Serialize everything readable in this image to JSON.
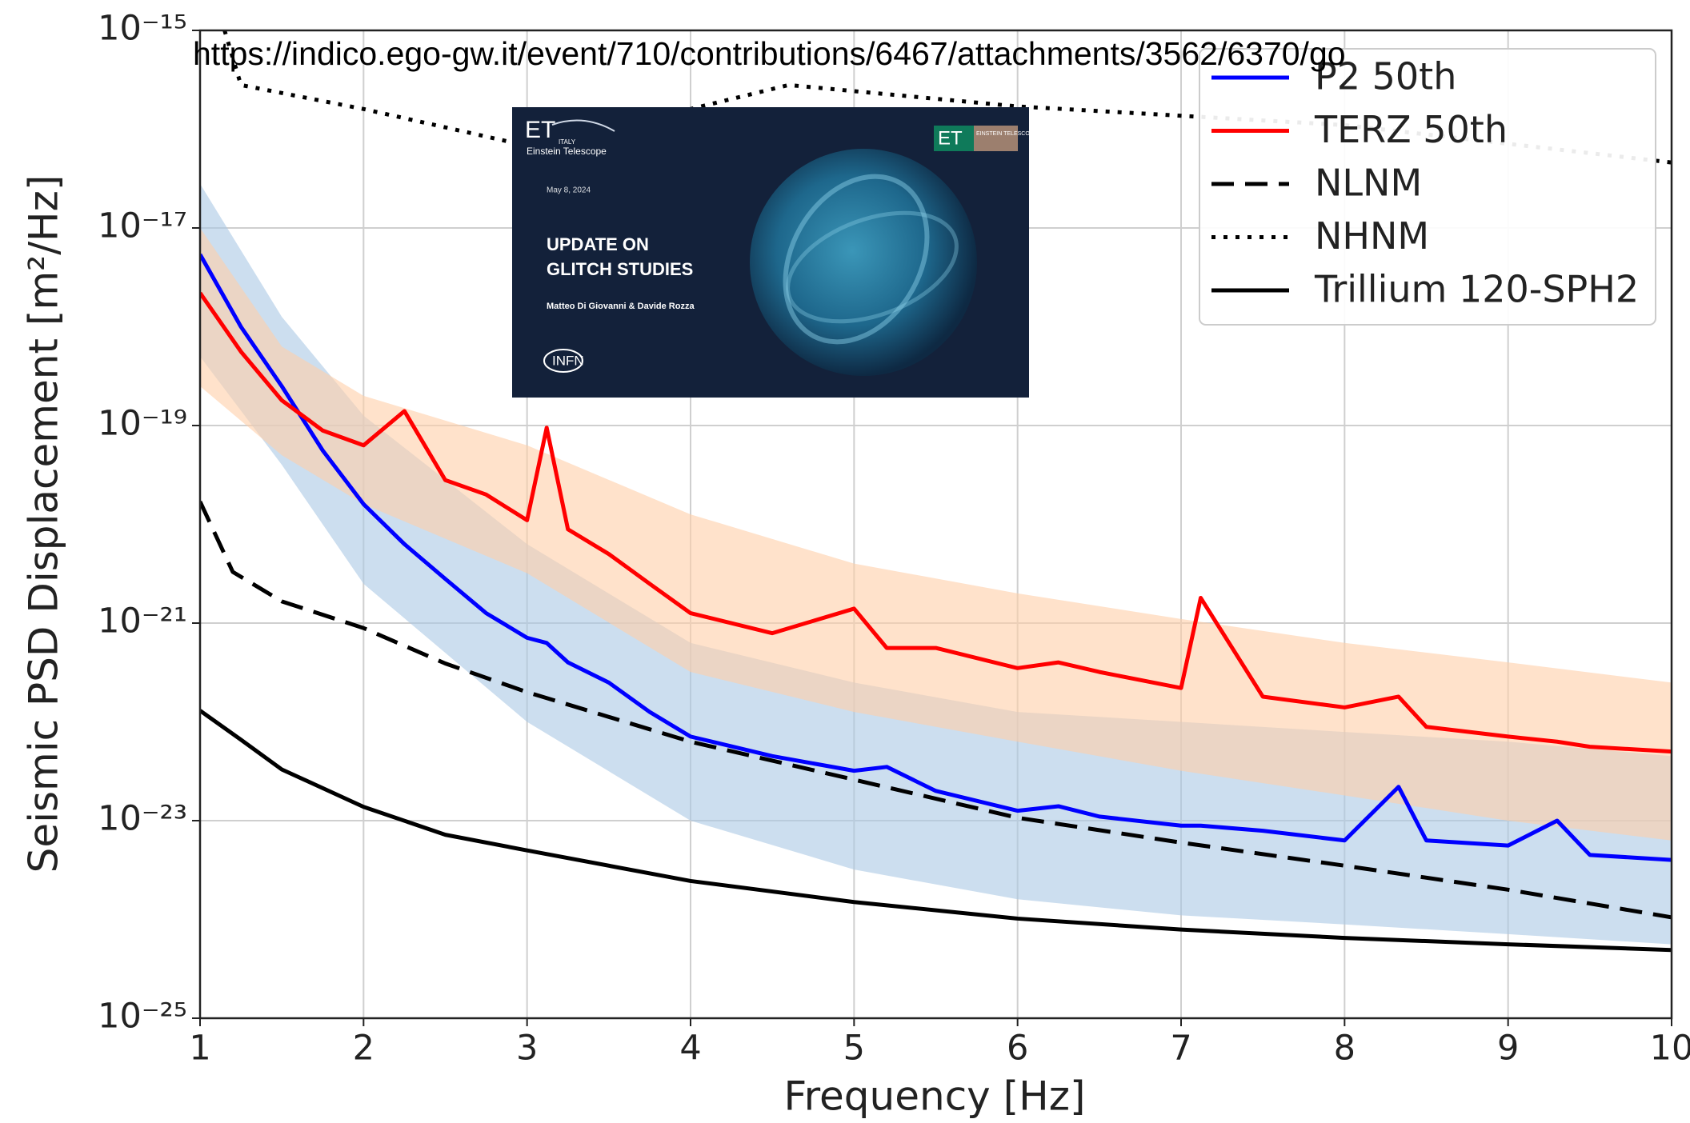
{
  "chart_data": {
    "type": "line",
    "annotation": "https://indico.ego-gw.it/event/710/contributions/6467/attachments/3562/6370/go",
    "xlabel": "Frequency [Hz]",
    "ylabel": "Seismic PSD Displacement [m²/Hz]",
    "xlim": [
      1,
      10
    ],
    "ylim": [
      1e-25,
      1e-15
    ],
    "log_y": true,
    "grid": true,
    "legend": "upper right",
    "xticks": [
      1,
      2,
      3,
      4,
      5,
      6,
      7,
      8,
      9,
      10
    ],
    "yticks": [
      {
        "value": 1e-25,
        "label": "10⁻²⁵"
      },
      {
        "value": 1e-23,
        "label": "10⁻²³"
      },
      {
        "value": 1e-21,
        "label": "10⁻²¹"
      },
      {
        "value": 1e-19,
        "label": "10⁻¹⁹"
      },
      {
        "value": 1e-17,
        "label": "10⁻¹⁷"
      },
      {
        "value": 1e-15,
        "label": "10⁻¹⁵"
      }
    ],
    "series": [
      {
        "name": "P2 50th",
        "color": "#0000ff",
        "style": "solid",
        "x": [
          1,
          1.25,
          1.5,
          1.75,
          2,
          2.25,
          2.5,
          2.75,
          3,
          3.12,
          3.25,
          3.5,
          3.75,
          4,
          4.5,
          5,
          5.2,
          5.5,
          6,
          6.25,
          6.5,
          7,
          7.12,
          7.5,
          8,
          8.33,
          8.5,
          9,
          9.3,
          9.5,
          10
        ],
        "values": [
          5.4e-18,
          1e-18,
          2.5e-19,
          5.6e-20,
          1.6e-20,
          6.3e-21,
          2.8e-21,
          1.26e-21,
          7.1e-22,
          6.3e-22,
          4e-22,
          2.5e-22,
          1.26e-22,
          7.1e-23,
          4.5e-23,
          3.2e-23,
          3.5e-23,
          2e-23,
          1.26e-23,
          1.4e-23,
          1.1e-23,
          8.9e-24,
          8.9e-24,
          7.9e-24,
          6.3e-24,
          2.2e-23,
          6.3e-24,
          5.6e-24,
          1e-23,
          4.5e-24,
          4e-24
        ],
        "band": {
          "color": "#aac8e4",
          "x": [
            1,
            1.5,
            2,
            3,
            4,
            5,
            6,
            7,
            8,
            9,
            10
          ],
          "high": [
            2.8e-17,
            1.26e-18,
            1.26e-19,
            6.3e-21,
            6.3e-22,
            2.5e-22,
            1.26e-22,
            1e-22,
            7.9e-23,
            6.3e-23,
            4.5e-23
          ],
          "low": [
            5e-19,
            4e-20,
            2.5e-21,
            1e-22,
            1e-23,
            3.2e-24,
            1.6e-24,
            1.1e-24,
            8.9e-25,
            7.1e-25,
            5.6e-25
          ]
        }
      },
      {
        "name": "TERZ 50th",
        "color": "#ff0000",
        "style": "solid",
        "x": [
          1,
          1.25,
          1.5,
          1.75,
          2,
          2.25,
          2.5,
          2.75,
          3,
          3.12,
          3.25,
          3.5,
          3.75,
          4,
          4.5,
          5,
          5.2,
          5.5,
          6,
          6.25,
          6.5,
          7,
          7.12,
          7.5,
          8,
          8.33,
          8.5,
          9,
          9.3,
          9.5,
          10
        ],
        "values": [
          2.2e-18,
          5.6e-19,
          1.8e-19,
          8.9e-20,
          6.3e-20,
          1.4e-19,
          2.8e-20,
          2e-20,
          1.1e-20,
          9.5e-20,
          8.9e-21,
          5e-21,
          2.5e-21,
          1.26e-21,
          7.9e-22,
          1.4e-21,
          5.6e-22,
          5.6e-22,
          3.5e-22,
          4e-22,
          3.2e-22,
          2.2e-22,
          1.8e-21,
          1.8e-22,
          1.4e-22,
          1.8e-22,
          8.9e-23,
          7.1e-23,
          6.3e-23,
          5.6e-23,
          5e-23
        ],
        "band": {
          "color": "#ffcfa8",
          "x": [
            1,
            1.5,
            2,
            3,
            4,
            5,
            6,
            7,
            8,
            9,
            10
          ],
          "high": [
            1e-17,
            6.3e-19,
            2e-19,
            6.3e-20,
            1.26e-20,
            4e-21,
            2e-21,
            1.1e-21,
            6.3e-22,
            4e-22,
            2.5e-22
          ],
          "low": [
            2.5e-19,
            5e-20,
            1.6e-20,
            3.2e-21,
            3.2e-22,
            1.26e-22,
            6.3e-23,
            3.2e-23,
            1.8e-23,
            1e-23,
            6.3e-24
          ]
        }
      },
      {
        "name": "NLNM",
        "color": "#000000",
        "style": "dashed",
        "x": [
          1,
          1.2,
          1.5,
          2,
          2.5,
          3,
          4,
          5,
          6,
          7,
          8,
          9,
          10
        ],
        "values": [
          1.7e-20,
          3.3e-21,
          1.66e-21,
          8.9e-22,
          3.9e-22,
          2e-22,
          6.3e-23,
          2.6e-23,
          1.07e-23,
          6e-24,
          3.5e-24,
          2e-24,
          1.05e-24
        ]
      },
      {
        "name": "NHNM",
        "color": "#000000",
        "style": "dotted",
        "x": [
          1.15,
          1.25,
          2,
          3,
          4,
          4.6,
          6,
          8,
          10
        ],
        "values": [
          1e-15,
          2.8e-16,
          1.6e-16,
          6.8e-17,
          1.6e-16,
          2.8e-16,
          1.7e-16,
          1.1e-16,
          4.6e-17
        ]
      },
      {
        "name": "Trillium 120-SPH2",
        "color": "#000000",
        "style": "solid",
        "x": [
          1,
          1.25,
          1.5,
          2,
          2.5,
          3,
          4,
          5,
          6,
          7,
          8,
          9,
          10
        ],
        "values": [
          1.3e-22,
          6.6e-23,
          3.3e-23,
          1.38e-23,
          7.2e-24,
          5e-24,
          2.45e-24,
          1.5e-24,
          1.02e-24,
          7.9e-25,
          6.5e-25,
          5.6e-25,
          4.9e-25
        ]
      }
    ]
  },
  "inset": {
    "logo": "ET",
    "logo_sub": "ITALY",
    "logo_caption": "Einstein Telescope",
    "right_logo": "ET",
    "right_logo_sub": "EINSTEIN TELESCOPE",
    "date": "May 8, 2024",
    "title_lines": [
      "UPDATE ON",
      "GLITCH STUDIES"
    ],
    "authors": "Matteo Di Giovanni & Davide Rozza",
    "institution": "INFN"
  }
}
